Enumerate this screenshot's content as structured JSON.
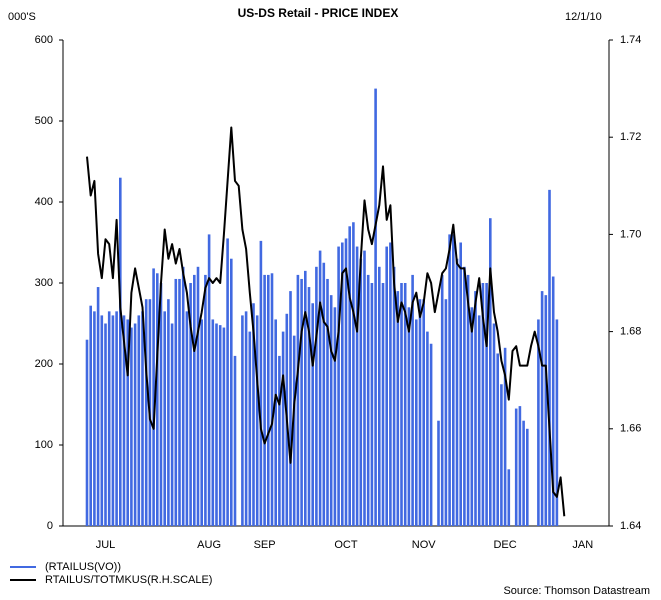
{
  "chart_data": {
    "type": "bar",
    "title": "US-DS Retail - PRICE INDEX",
    "ylabel": "000'S",
    "date": "12/1/10",
    "source": "Source: Thomson Datastream",
    "categories": [
      null,
      null,
      null,
      null,
      null,
      "JUL",
      null,
      null,
      null,
      null,
      null,
      null,
      null,
      null,
      null,
      null,
      null,
      null,
      null,
      null,
      null,
      null,
      null,
      null,
      null,
      null,
      null,
      null,
      null,
      null,
      null,
      null,
      null,
      "AUG",
      null,
      null,
      null,
      null,
      null,
      null,
      null,
      null,
      null,
      null,
      null,
      null,
      null,
      null,
      "SEP",
      null,
      null,
      null,
      null,
      null,
      null,
      null,
      null,
      null,
      null,
      null,
      null,
      null,
      null,
      null,
      null,
      null,
      null,
      null,
      null,
      null,
      "OCT",
      null,
      null,
      null,
      null,
      null,
      null,
      null,
      null,
      null,
      null,
      null,
      null,
      null,
      null,
      null,
      null,
      null,
      null,
      null,
      null,
      "NOV",
      null,
      null,
      null,
      null,
      null,
      null,
      null,
      null,
      null,
      null,
      null,
      null,
      null,
      null,
      null,
      null,
      null,
      null,
      null,
      null,
      null,
      "DEC",
      null,
      null,
      null,
      null,
      null,
      null,
      null,
      null,
      null,
      null,
      null,
      null,
      null,
      null,
      null,
      null,
      null,
      null,
      null,
      null,
      "JAN",
      null
    ],
    "series": [
      {
        "name": "(RTAILUS(VO))",
        "color": "#4169e1",
        "type": "bar",
        "axis": "y",
        "values": [
          230,
          272,
          265,
          295,
          260,
          250,
          265,
          260,
          265,
          430,
          260,
          255,
          245,
          250,
          260,
          265,
          280,
          280,
          318,
          312,
          300,
          265,
          280,
          250,
          305,
          305,
          320,
          265,
          300,
          310,
          320,
          255,
          310,
          360,
          255,
          250,
          248,
          245,
          355,
          330,
          210,
          null,
          260,
          265,
          240,
          275,
          260,
          352,
          310,
          310,
          312,
          255,
          210,
          240,
          262,
          290,
          235,
          310,
          305,
          315,
          295,
          275,
          320,
          340,
          325,
          305,
          285,
          270,
          345,
          350,
          355,
          370,
          375,
          345,
          330,
          340,
          310,
          300,
          540,
          320,
          300,
          345,
          350,
          320,
          290,
          300,
          300,
          270,
          310,
          255,
          280,
          280,
          240,
          225,
          null,
          130,
          310,
          280,
          360,
          360,
          330,
          350,
          320,
          310,
          270,
          290,
          260,
          300,
          300,
          380,
          250,
          213,
          175,
          220,
          70,
          null,
          145,
          148,
          130,
          120,
          null,
          null,
          255,
          290,
          285,
          415,
          308,
          255,
          null,
          null,
          null,
          null,
          null,
          null,
          null,
          null
        ]
      },
      {
        "name": "RTAILUS/TOTMKUS(R.H.SCALE)",
        "color": "#000000",
        "type": "line",
        "axis": "y2",
        "values": [
          1.716,
          1.708,
          1.711,
          1.696,
          1.691,
          1.699,
          1.698,
          1.691,
          1.703,
          1.685,
          1.678,
          1.671,
          1.688,
          1.693,
          1.689,
          1.685,
          1.672,
          1.662,
          1.66,
          1.675,
          1.69,
          1.701,
          1.695,
          1.698,
          1.694,
          1.697,
          1.692,
          1.688,
          1.681,
          1.676,
          1.68,
          1.684,
          1.689,
          1.691,
          1.69,
          1.691,
          1.69,
          1.7,
          1.711,
          1.722,
          1.711,
          1.71,
          1.701,
          1.697,
          1.688,
          1.68,
          1.67,
          1.66,
          1.657,
          1.659,
          1.661,
          1.667,
          1.665,
          1.671,
          1.662,
          1.653,
          1.665,
          1.672,
          1.68,
          1.684,
          1.68,
          1.673,
          1.679,
          1.686,
          1.682,
          1.681,
          1.676,
          1.674,
          1.68,
          1.692,
          1.693,
          1.687,
          1.684,
          1.68,
          1.695,
          1.707,
          1.701,
          1.698,
          1.702,
          1.706,
          1.714,
          1.703,
          1.706,
          1.69,
          1.682,
          1.686,
          1.684,
          1.68,
          1.686,
          1.688,
          1.683,
          1.686,
          1.692,
          1.69,
          1.684,
          1.688,
          1.692,
          1.693,
          1.697,
          1.702,
          1.694,
          1.693,
          1.693,
          1.686,
          1.68,
          1.686,
          1.691,
          1.683,
          1.677,
          1.693,
          1.684,
          1.68,
          1.674,
          1.671,
          1.666,
          1.676,
          1.677,
          1.673,
          1.673,
          1.673,
          1.677,
          1.68,
          1.677,
          1.673,
          1.673,
          1.66,
          1.647,
          1.646,
          1.65,
          1.642,
          null,
          null,
          null,
          null,
          null,
          null
        ]
      }
    ],
    "ylim": [
      0,
      600
    ],
    "yticks": [
      0,
      100,
      200,
      300,
      400,
      500,
      600
    ],
    "y2lim": [
      1.64,
      1.74
    ],
    "y2ticks": [
      1.64,
      1.66,
      1.68,
      {
        "value": 1.7,
        "label": "1.70"
      },
      1.72,
      1.74
    ]
  }
}
